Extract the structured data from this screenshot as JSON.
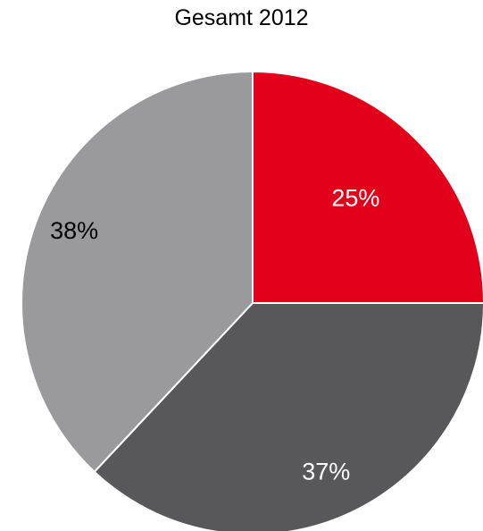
{
  "chart_data": {
    "type": "pie",
    "title": "Gesamt 2012",
    "slices": [
      {
        "value": 25,
        "label": "25%",
        "color": "#e2001a",
        "label_color": "#ffffff"
      },
      {
        "value": 37,
        "label": "37%",
        "color": "#58585a",
        "label_color": "#ffffff"
      },
      {
        "value": 38,
        "label": "38%",
        "color": "#9a9a9c",
        "label_color": "#000000"
      }
    ],
    "start_angle": "12 o'clock",
    "direction": "clockwise"
  }
}
